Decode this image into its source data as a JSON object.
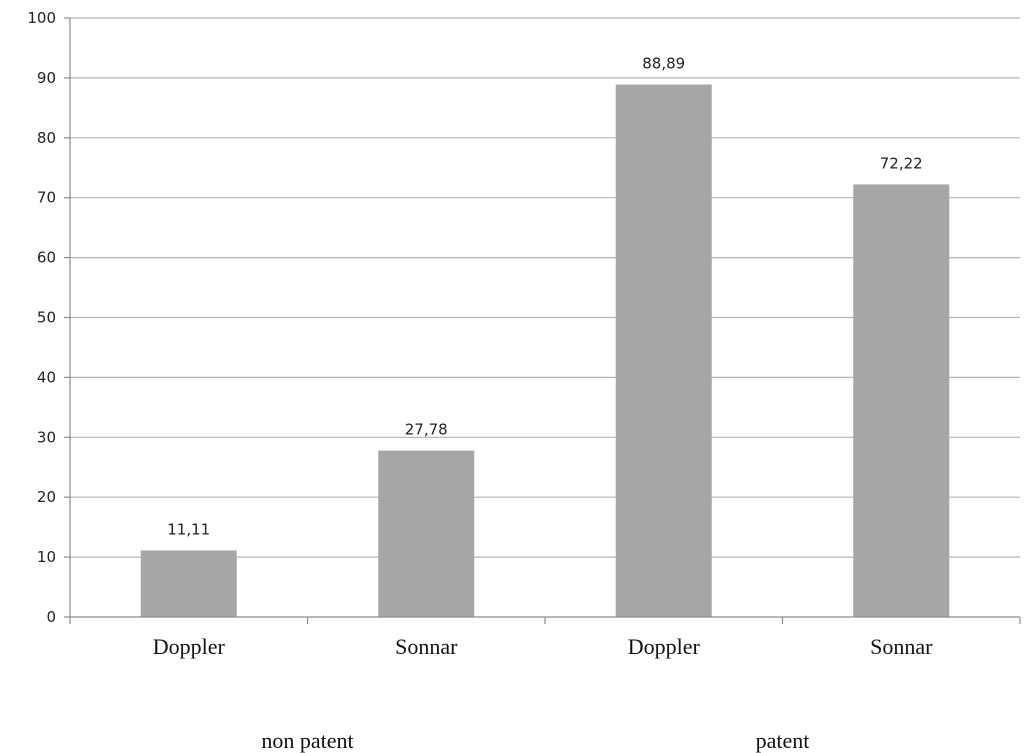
{
  "chart_data": {
    "type": "bar",
    "categories": [
      "Doppler",
      "Sonnar",
      "Doppler",
      "Sonnar"
    ],
    "groups": [
      {
        "label": "non patent",
        "categories": [
          0,
          1
        ]
      },
      {
        "label": "patent",
        "categories": [
          2,
          3
        ]
      }
    ],
    "values": [
      11.11,
      27.78,
      88.89,
      72.22
    ],
    "data_labels": [
      "11,11",
      "27,78",
      "88,89",
      "72,22"
    ],
    "ylim": [
      0,
      100
    ],
    "yticks": [
      0,
      10,
      20,
      30,
      40,
      50,
      60,
      70,
      80,
      90,
      100
    ],
    "grid": true,
    "bar_color": "#a6a6a6",
    "grid_color": "#b5b5b5",
    "axis_color": "#8c8c8c"
  }
}
